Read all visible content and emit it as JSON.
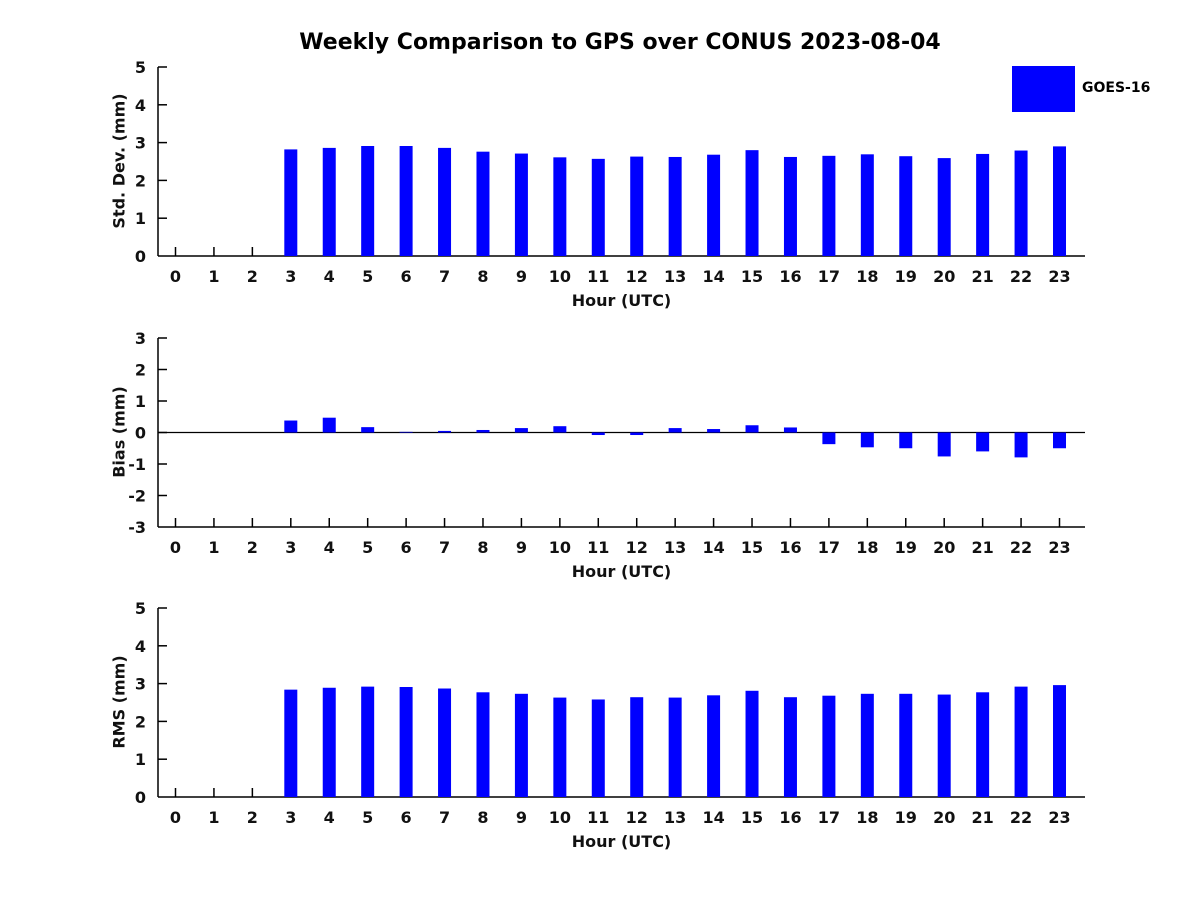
{
  "title": "Weekly Comparison to GPS over CONUS 2023-08-04",
  "legend": {
    "label": "GOES-16",
    "color": "#0000ff"
  },
  "colors": {
    "bar": "#0000ff",
    "axis": "#000000",
    "text": "#111111"
  },
  "chart_data": [
    {
      "type": "bar",
      "title": "",
      "xlabel": "Hour (UTC)",
      "ylabel": "Std. Dev. (mm)",
      "ylim": [
        0,
        5
      ],
      "yticks": [
        0,
        1,
        2,
        3,
        4,
        5
      ],
      "grid": false,
      "legend_position": "upper right outside",
      "categories": [
        "0",
        "1",
        "2",
        "3",
        "4",
        "5",
        "6",
        "7",
        "8",
        "9",
        "10",
        "11",
        "12",
        "13",
        "14",
        "15",
        "16",
        "17",
        "18",
        "19",
        "20",
        "21",
        "22",
        "23"
      ],
      "series": [
        {
          "name": "GOES-16",
          "values": [
            null,
            null,
            null,
            2.82,
            2.86,
            2.91,
            2.91,
            2.86,
            2.76,
            2.71,
            2.61,
            2.57,
            2.63,
            2.62,
            2.68,
            2.8,
            2.62,
            2.65,
            2.69,
            2.64,
            2.59,
            2.7,
            2.79,
            2.9
          ]
        }
      ]
    },
    {
      "type": "bar",
      "title": "",
      "xlabel": "Hour (UTC)",
      "ylabel": "Bias (mm)",
      "ylim": [
        -3,
        3
      ],
      "yticks": [
        -3,
        -2,
        -1,
        0,
        1,
        2,
        3
      ],
      "grid": false,
      "zero_line": true,
      "categories": [
        "0",
        "1",
        "2",
        "3",
        "4",
        "5",
        "6",
        "7",
        "8",
        "9",
        "10",
        "11",
        "12",
        "13",
        "14",
        "15",
        "16",
        "17",
        "18",
        "19",
        "20",
        "21",
        "22",
        "23"
      ],
      "series": [
        {
          "name": "GOES-16",
          "values": [
            null,
            null,
            null,
            0.38,
            0.47,
            0.17,
            0.02,
            0.05,
            0.08,
            0.14,
            0.2,
            -0.08,
            -0.08,
            0.14,
            0.11,
            0.23,
            0.16,
            -0.37,
            -0.47,
            -0.5,
            -0.76,
            -0.6,
            -0.79,
            -0.5
          ]
        }
      ]
    },
    {
      "type": "bar",
      "title": "",
      "xlabel": "Hour (UTC)",
      "ylabel": "RMS (mm)",
      "ylim": [
        0,
        5
      ],
      "yticks": [
        0,
        1,
        2,
        3,
        4,
        5
      ],
      "grid": false,
      "categories": [
        "0",
        "1",
        "2",
        "3",
        "4",
        "5",
        "6",
        "7",
        "8",
        "9",
        "10",
        "11",
        "12",
        "13",
        "14",
        "15",
        "16",
        "17",
        "18",
        "19",
        "20",
        "21",
        "22",
        "23"
      ],
      "series": [
        {
          "name": "GOES-16",
          "values": [
            null,
            null,
            null,
            2.84,
            2.89,
            2.92,
            2.91,
            2.87,
            2.77,
            2.73,
            2.63,
            2.58,
            2.64,
            2.63,
            2.69,
            2.81,
            2.64,
            2.68,
            2.73,
            2.73,
            2.71,
            2.77,
            2.92,
            2.96
          ]
        }
      ]
    }
  ]
}
